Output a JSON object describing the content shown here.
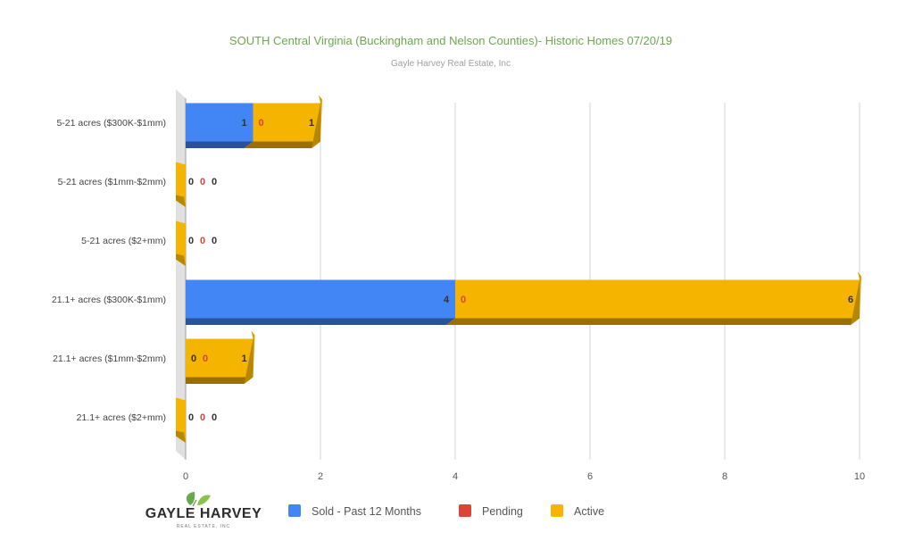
{
  "chart_data": {
    "type": "bar",
    "orientation": "horizontal",
    "stacked": true,
    "style": "3d",
    "title": "SOUTH Central Virginia (Buckingham and Nelson Counties)- Historic Homes 07/20/19",
    "subtitle": "Gayle Harvey Real Estate, Inc",
    "categories": [
      "5-21 acres ($300K-$1mm)",
      "5-21 acres ($1mm-$2mm)",
      "5-21 acres ($2+mm)",
      "21.1+ acres ($300K-$1mm)",
      "21.1+ acres ($1mm-$2mm)",
      "21.1+ acres ($2+mm)"
    ],
    "series": [
      {
        "name": "Sold - Past 12 Months",
        "color": "#4285f4",
        "label_color": "#333333",
        "values": [
          1,
          0,
          0,
          4,
          0,
          0
        ]
      },
      {
        "name": "Pending",
        "color": "#db4437",
        "label_color": "#db4437",
        "values": [
          0,
          0,
          0,
          0,
          0,
          0
        ]
      },
      {
        "name": "Active",
        "color": "#f4b400",
        "label_color": "#333333",
        "values": [
          1,
          0,
          0,
          6,
          1,
          0
        ]
      }
    ],
    "data_labels": [
      [
        "1",
        "0",
        "1"
      ],
      [
        "0",
        "0",
        "0"
      ],
      [
        "0",
        "0",
        "0"
      ],
      [
        "4",
        "0",
        "6"
      ],
      [
        "0",
        "0",
        "1"
      ],
      [
        "0",
        "0",
        "0"
      ]
    ],
    "xlim": [
      0,
      10
    ],
    "xticks": [
      "0",
      "2",
      "4",
      "6",
      "8",
      "10"
    ],
    "xlabel": "",
    "ylabel": "",
    "grid": true,
    "legend_position": "bottom"
  },
  "logo": {
    "name": "GAYLE HARVEY",
    "tagline": "REAL ESTATE, INC"
  }
}
